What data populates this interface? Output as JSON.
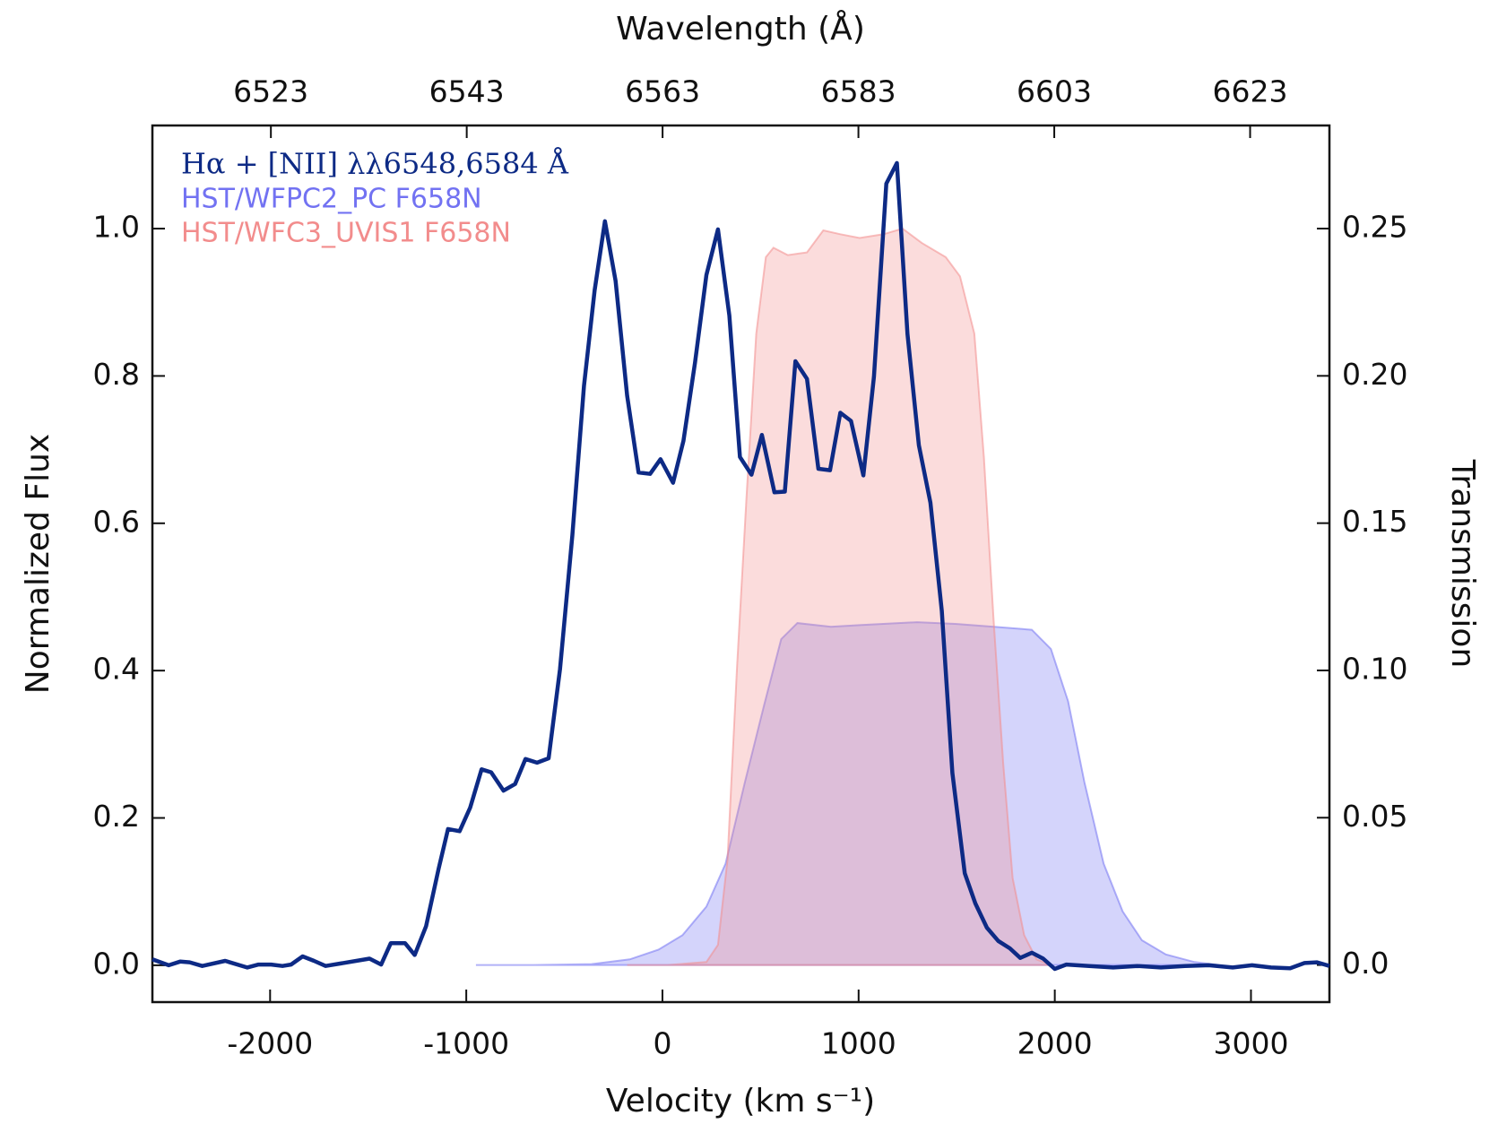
{
  "chart_data": {
    "type": "line",
    "xlabel": "Velocity (km s⁻¹)",
    "ylabel": "Normalized Flux",
    "y2label": "Transmission",
    "x2label": "Wavelength (Å)",
    "xlim": [
      -2600,
      3400
    ],
    "xticks": [
      -2000,
      -1000,
      0,
      1000,
      2000,
      3000
    ],
    "x2lim": [
      6510.9,
      6631.1
    ],
    "x2ticks": [
      6523,
      6543,
      6563,
      6583,
      6603,
      6623
    ],
    "ylim": [
      -0.05,
      1.14
    ],
    "yticks": [
      {
        "value": 0,
        "label": "0.0"
      },
      0.2,
      0.4,
      0.6,
      0.8,
      {
        "value": 1,
        "label": "1.0"
      }
    ],
    "y2lim": [
      -0.0126,
      0.285
    ],
    "y2ticks": [
      {
        "value": 0,
        "label": "0.0"
      },
      0.05,
      {
        "value": 0.1,
        "label": "0.10"
      },
      0.15,
      {
        "value": 0.2,
        "label": "0.20"
      },
      0.25
    ],
    "legend": "upper left",
    "series": [
      {
        "name": "Hα + [NII] λλ6548,6584 Å",
        "color": "#0d2a85",
        "style": "line",
        "x": [
          -2600,
          -2517,
          -2459,
          -2410,
          -2346,
          -2229,
          -2117,
          -2059,
          -1995,
          -1937,
          -1893,
          -1834,
          -1776,
          -1717,
          -1493,
          -1434,
          -1385,
          -1312,
          -1263,
          -1205,
          -1141,
          -1093,
          -1034,
          -980,
          -922,
          -873,
          -810,
          -751,
          -698,
          -639,
          -580,
          -522,
          -459,
          -400,
          -346,
          -293,
          -239,
          -180,
          -122,
          -63,
          -10,
          54,
          107,
          166,
          224,
          283,
          341,
          395,
          454,
          507,
          571,
          624,
          678,
          737,
          795,
          854,
          907,
          961,
          1024,
          1078,
          1141,
          1195,
          1249,
          1307,
          1366,
          1424,
          1478,
          1541,
          1595,
          1654,
          1712,
          1771,
          1824,
          1883,
          1941,
          2000,
          2059,
          2176,
          2298,
          2420,
          2541,
          2663,
          2785,
          2907,
          3005,
          3102,
          3200,
          3273,
          3337,
          3400
        ],
        "values": [
          0.008,
          0,
          0.005,
          0.004,
          -0.001,
          0.006,
          -0.003,
          0.001,
          0.001,
          -0.001,
          0.001,
          0.012,
          0.006,
          -0.001,
          0.009,
          0.001,
          0.03,
          0.03,
          0.014,
          0.053,
          0.131,
          0.185,
          0.182,
          0.214,
          0.266,
          0.262,
          0.237,
          0.246,
          0.28,
          0.275,
          0.281,
          0.402,
          0.584,
          0.786,
          0.916,
          1.01,
          0.929,
          0.773,
          0.669,
          0.667,
          0.687,
          0.655,
          0.712,
          0.818,
          0.937,
          0.999,
          0.882,
          0.69,
          0.666,
          0.72,
          0.642,
          0.643,
          0.82,
          0.796,
          0.674,
          0.672,
          0.75,
          0.739,
          0.665,
          0.799,
          1.061,
          1.089,
          0.857,
          0.706,
          0.628,
          0.481,
          0.261,
          0.125,
          0.084,
          0.051,
          0.033,
          0.023,
          0.01,
          0.017,
          0.009,
          -0.005,
          0.001,
          -0.001,
          -0.003,
          -0.001,
          -0.003,
          -0.001,
          0,
          -0.003,
          0,
          -0.003,
          -0.004,
          0.003,
          0.004,
          -0.001
        ]
      },
      {
        "name": "HST/WFPC2_PC F658N",
        "color": "#7272f2",
        "style": "area",
        "axis": "y2",
        "x": [
          -951,
          -654,
          -361,
          -166,
          -20,
          102,
          224,
          322,
          420,
          517,
          605,
          688,
          859,
          1005,
          1298,
          1493,
          1688,
          1883,
          1980,
          2068,
          2151,
          2249,
          2346,
          2444,
          2566,
          2712,
          2834
        ],
        "values": [
          0,
          0,
          0.0003,
          0.0019,
          0.0052,
          0.0101,
          0.0198,
          0.0344,
          0.062,
          0.0879,
          0.1106,
          0.1161,
          0.1148,
          0.1154,
          0.1164,
          0.1158,
          0.1148,
          0.1138,
          0.1073,
          0.0895,
          0.062,
          0.0344,
          0.0182,
          0.0084,
          0.0036,
          0.001,
          0
        ]
      },
      {
        "name": "HST/WFC3_UVIS1 F658N",
        "color": "#f28c8c",
        "style": "area",
        "axis": "y2",
        "x": [
          -180,
          29,
          224,
          283,
          332,
          380,
          429,
          478,
          527,
          566,
          639,
          737,
          820,
          907,
          1005,
          1127,
          1224,
          1322,
          1444,
          1517,
          1590,
          1639,
          1688,
          1737,
          1785,
          1844,
          1907,
          1980
        ],
        "values": [
          0,
          0,
          0.001,
          0.0068,
          0.036,
          0.1008,
          0.1592,
          0.2143,
          0.2403,
          0.2435,
          0.241,
          0.2419,
          0.2494,
          0.2481,
          0.2468,
          0.2481,
          0.25,
          0.2451,
          0.2403,
          0.2338,
          0.2143,
          0.1722,
          0.1171,
          0.0684,
          0.0295,
          0.0101,
          0.0019,
          0
        ]
      }
    ]
  }
}
